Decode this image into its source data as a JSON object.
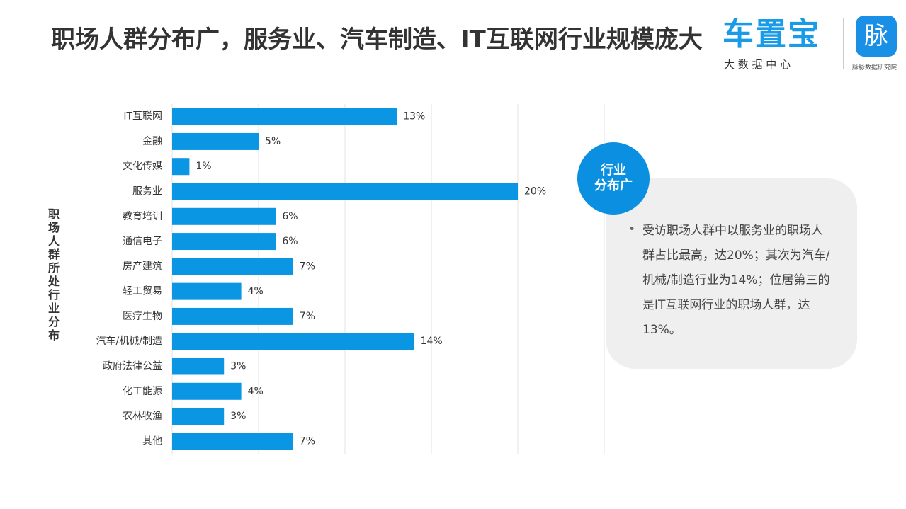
{
  "header": {
    "title": "职场人群分布广，服务业、汽车制造、IT互联网行业规模庞大"
  },
  "logo": {
    "brand": "车置宝",
    "brand_sub": "大 数 据 中 心",
    "badge": "脉",
    "org": "脉脉数据研究院"
  },
  "chart_data": {
    "type": "hbar",
    "y_label": "职场人群所处行业分布",
    "categories": [
      "IT互联网",
      "金融",
      "文化传媒",
      "服务业",
      "教育培训",
      "通信电子",
      "房产建筑",
      "轻工贸易",
      "医疗生物",
      "汽车/机械/制造",
      "政府法律公益",
      "化工能源",
      "农林牧渔",
      "其他"
    ],
    "values": [
      13,
      5,
      1,
      20,
      6,
      6,
      7,
      4,
      7,
      14,
      3,
      4,
      3,
      7
    ],
    "value_labels": [
      "13%",
      "5%",
      "1%",
      "20%",
      "6%",
      "6%",
      "7%",
      "4%",
      "7%",
      "14%",
      "3%",
      "4%",
      "3%",
      "7%"
    ],
    "color": "#0b96e3",
    "xlim": [
      0,
      25
    ],
    "xticks": [
      0,
      5,
      10,
      15,
      20,
      25
    ],
    "grid": true
  },
  "callout": {
    "badge": [
      "行业",
      "分布广"
    ],
    "text": "受访职场人群中以服务业的职场人群占比最高，达20%；其次为汽车/机械/制造行业为14%；位居第三的是IT互联网行业的职场人群，达13%。"
  }
}
